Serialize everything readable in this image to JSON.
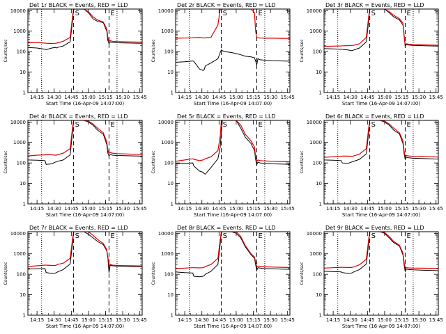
{
  "chart_data": {
    "type": "line",
    "layout": "3x3 grid",
    "y_scale": "log",
    "ylim": [
      1,
      12000
    ],
    "y_ticks": [
      "1",
      "10",
      "100",
      "1000",
      "10000"
    ],
    "x_ticks": [
      "14:15",
      "14:30",
      "14:45",
      "15:00",
      "15:15",
      "15:30",
      "15:45"
    ],
    "xlabel": "Start Time (16-Apr-09 14:07:00)",
    "ylabel": "Counts/sec",
    "x_range": [
      "14:07",
      "15:47"
    ],
    "line_colors": {
      "events": "#000000",
      "lld": "#e00000"
    },
    "markers": [
      {
        "label": "S",
        "time": "14:47",
        "style": "dashed"
      },
      {
        "label": "E",
        "time": "15:18",
        "style": "dashed"
      },
      {
        "label": "",
        "time": "14:19",
        "style": "dotted"
      },
      {
        "label": "",
        "time": "15:25",
        "style": "dotted"
      }
    ],
    "x_times": [
      "14:07",
      "14:15",
      "14:22",
      "14:23",
      "14:28",
      "14:31",
      "14:32",
      "14:33",
      "14:38",
      "14:44",
      "14:46",
      "14:47",
      "14:48",
      "14:50",
      "14:56",
      "15:00",
      "15:04",
      "15:08",
      "15:13",
      "15:16",
      "15:17",
      "15:18",
      "15:19",
      "15:21",
      "15:25",
      "15:32",
      "15:40",
      "15:47"
    ],
    "panels": [
      {
        "title": "Det 1r BLACK = Events, RED = LLD",
        "series": [
          {
            "name": "Events",
            "values": [
              160,
              150,
              130,
              125,
              150,
              160,
              150,
              160,
              190,
              300,
              3000,
              15000,
              15000,
              15000,
              12000,
              8000,
              4000,
              3000,
              2600,
              1000,
              350,
              240,
              300,
              280,
              270,
              265,
              260,
              255
            ]
          },
          {
            "name": "LLD",
            "values": [
              270,
              280,
              260,
              255,
              250,
              255,
              260,
              270,
              320,
              500,
              5000,
              15000,
              15000,
              15000,
              13000,
              9000,
              5000,
              3500,
              2800,
              1300,
              500,
              320,
              340,
              320,
              310,
              300,
              295,
              290
            ]
          }
        ]
      },
      {
        "title": "Det 2r BLACK = Events, RED = LLD",
        "series": [
          {
            "name": "Events",
            "values": [
              30,
              32,
              35,
              33,
              14,
              12,
              13,
              20,
              28,
              45,
              90,
              120,
              110,
              100,
              90,
              80,
              70,
              60,
              55,
              50,
              35,
              22,
              45,
              40,
              38,
              36,
              35,
              34
            ]
          },
          {
            "name": "LLD",
            "values": [
              450,
              460,
              470,
              480,
              490,
              470,
              460,
              470,
              500,
              2000,
              15000,
              15000,
              15000,
              15000,
              15000,
              15000,
              15000,
              15000,
              15000,
              8000,
              1000,
              480,
              470,
              460,
              450,
              450,
              445,
              440
            ]
          }
        ]
      },
      {
        "title": "Det 3r BLACK = Events, RED = LLD",
        "series": [
          {
            "name": "Events",
            "values": [
              140,
              135,
              130,
              128,
              120,
              110,
              115,
              120,
              150,
              300,
              3000,
              15000,
              15000,
              15000,
              15000,
              12000,
              8000,
              5000,
              3500,
              2000,
              600,
              190,
              220,
              210,
              200,
              195,
              190,
              185
            ]
          },
          {
            "name": "LLD",
            "values": [
              180,
              185,
              190,
              192,
              195,
              200,
              200,
              205,
              240,
              500,
              5000,
              15000,
              15000,
              15000,
              15000,
              14000,
              9000,
              6000,
              4000,
              2500,
              700,
              220,
              240,
              230,
              220,
              215,
              210,
              205
            ]
          }
        ]
      },
      {
        "title": "Det 4r BLACK = Events, RED = LLD",
        "series": [
          {
            "name": "Events",
            "values": [
              140,
              135,
              130,
              85,
              90,
              110,
              112,
              120,
              140,
              250,
              3000,
              15000,
              15000,
              15000,
              13000,
              10000,
              7000,
              4000,
              2500,
              800,
              300,
              220,
              260,
              240,
              230,
              225,
              220,
              215
            ]
          },
          {
            "name": "LLD",
            "values": [
              220,
              240,
              250,
              260,
              250,
              240,
              240,
              250,
              300,
              500,
              5000,
              15000,
              15000,
              15000,
              14000,
              11000,
              8000,
              5000,
              3000,
              1100,
              420,
              300,
              320,
              300,
              285,
              275,
              265,
              260
            ]
          }
        ]
      },
      {
        "title": "Det 5r BLACK = Events, RED = LLD",
        "series": [
          {
            "name": "Events",
            "values": [
              90,
              95,
              100,
              70,
              40,
              35,
              30,
              28,
              60,
              160,
              600,
              3000,
              15000,
              15000,
              15000,
              12000,
              5000,
              1800,
              900,
              400,
              150,
              80,
              110,
              100,
              95,
              90,
              88,
              85
            ]
          },
          {
            "name": "LLD",
            "values": [
              120,
              140,
              160,
              150,
              130,
              140,
              150,
              160,
              200,
              400,
              2000,
              15000,
              15000,
              15000,
              15000,
              14000,
              7000,
              2500,
              1200,
              600,
              200,
              120,
              140,
              130,
              125,
              120,
              118,
              115
            ]
          }
        ]
      },
      {
        "title": "Det 6r BLACK = Events, RED = LLD",
        "series": [
          {
            "name": "Events",
            "values": [
              140,
              135,
              130,
              100,
              95,
              110,
              115,
              120,
              150,
              280,
              3000,
              15000,
              15000,
              15000,
              14000,
              10000,
              7000,
              4000,
              2600,
              900,
              300,
              150,
              190,
              180,
              170,
              165,
              160,
              155
            ]
          },
          {
            "name": "LLD",
            "values": [
              190,
              200,
              210,
              215,
              215,
              210,
              210,
              220,
              270,
              500,
              5000,
              15000,
              15000,
              15000,
              15000,
              11000,
              8000,
              5000,
              3000,
              1200,
              400,
              210,
              230,
              220,
              210,
              205,
              200,
              195
            ]
          }
        ]
      },
      {
        "title": "Det 7r BLACK = Events, RED = LLD",
        "series": [
          {
            "name": "Events",
            "values": [
              180,
              185,
              190,
              120,
              110,
              115,
              120,
              130,
              170,
              320,
              3000,
              15000,
              15000,
              15000,
              13000,
              9000,
              6000,
              4000,
              2800,
              1400,
              600,
              120,
              280,
              260,
              250,
              245,
              240,
              235
            ]
          },
          {
            "name": "LLD",
            "values": [
              240,
              260,
              280,
              280,
              270,
              270,
              280,
              300,
              350,
              600,
              5000,
              15000,
              15000,
              15000,
              15000,
              12000,
              8000,
              5000,
              3200,
              1600,
              700,
              260,
              300,
              280,
              270,
              265,
              260,
              255
            ]
          }
        ]
      },
      {
        "title": "Det 8r BLACK = Events, RED = LLD",
        "series": [
          {
            "name": "Events",
            "values": [
              130,
              120,
              115,
              80,
              75,
              80,
              85,
              100,
              140,
              300,
              3000,
              15000,
              15000,
              15000,
              14000,
              10000,
              6000,
              2200,
              900,
              600,
              300,
              150,
              210,
              200,
              190,
              185,
              180,
              175
            ]
          },
          {
            "name": "LLD",
            "values": [
              190,
              200,
              210,
              210,
              205,
              210,
              220,
              240,
              300,
              600,
              5000,
              15000,
              15000,
              15000,
              15000,
              12000,
              7000,
              2500,
              1000,
              700,
              400,
              240,
              250,
              240,
              230,
              225,
              220,
              215
            ]
          }
        ]
      },
      {
        "title": "Det 9r BLACK = Events, RED = LLD",
        "series": [
          {
            "name": "Events",
            "values": [
              140,
              135,
              130,
              120,
              110,
              115,
              120,
              130,
              170,
              320,
              3000,
              15000,
              15000,
              15000,
              13000,
              10000,
              6000,
              3500,
              2400,
              900,
              300,
              140,
              180,
              170,
              165,
              160,
              155,
              150
            ]
          },
          {
            "name": "LLD",
            "values": [
              200,
              210,
              220,
              220,
              215,
              215,
              220,
              230,
              290,
              550,
              5000,
              15000,
              15000,
              15000,
              14000,
              11000,
              7000,
              4000,
              2600,
              1100,
              400,
              200,
              210,
              205,
              200,
              198,
              195,
              190
            ]
          }
        ]
      }
    ]
  }
}
